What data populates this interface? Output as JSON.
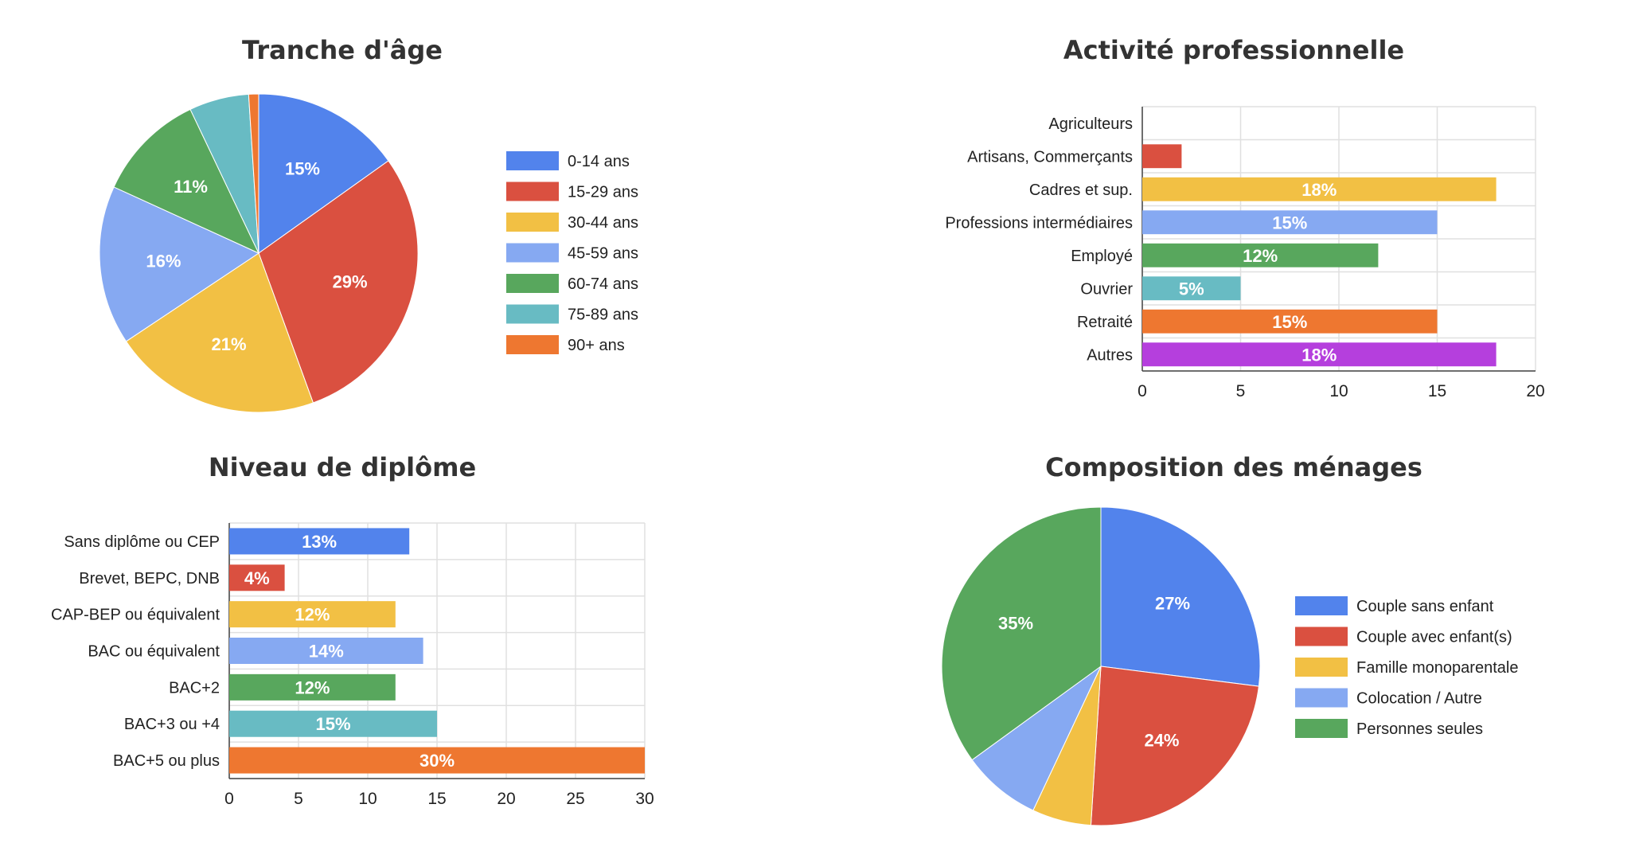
{
  "chart_data": [
    {
      "type": "pie",
      "title": "Tranche d'âge",
      "legend_position": "right",
      "slices": [
        {
          "label": "0-14 ans",
          "value": 15,
          "color": "#5283EC"
        },
        {
          "label": "15-29 ans",
          "value": 29,
          "color": "#DA5040"
        },
        {
          "label": "30-44 ans",
          "value": 21,
          "color": "#F2C044"
        },
        {
          "label": "45-59 ans",
          "value": 16,
          "color": "#86A9F2"
        },
        {
          "label": "60-74 ans",
          "value": 11,
          "color": "#58A75D"
        },
        {
          "label": "75-89 ans",
          "value": 6,
          "color": "#68BBC3"
        },
        {
          "label": "90+ ans",
          "value": 1,
          "color": "#EE7730"
        }
      ],
      "data_labels": [
        "15%",
        "29%",
        "21%",
        "16%",
        "11%",
        "",
        ""
      ]
    },
    {
      "type": "bar",
      "orientation": "horizontal",
      "title": "Activité professionnelle",
      "categories": [
        "Agriculteurs",
        "Artisans, Commerçants",
        "Cadres et sup.",
        "Professions intermédiaires",
        "Employé",
        "Ouvrier",
        "Retraité",
        "Autres"
      ],
      "values": [
        0,
        2,
        18,
        15,
        12,
        5,
        15,
        18
      ],
      "data_labels": [
        "",
        "",
        "18%",
        "15%",
        "12%",
        "5%",
        "15%",
        "18%"
      ],
      "colors": [
        "#5283EC",
        "#DA5040",
        "#F2C044",
        "#86A9F2",
        "#58A75D",
        "#68BBC3",
        "#EE7730",
        "#B53FDD"
      ],
      "xlim": [
        0,
        20
      ],
      "xticks": [
        "0",
        "5",
        "10",
        "15",
        "20"
      ],
      "grid": true
    },
    {
      "type": "bar",
      "orientation": "horizontal",
      "title": "Niveau de diplôme",
      "categories": [
        "Sans diplôme ou CEP",
        "Brevet, BEPC, DNB",
        "CAP-BEP ou équivalent",
        "BAC ou équivalent",
        "BAC+2",
        "BAC+3 ou +4",
        "BAC+5 ou plus"
      ],
      "values": [
        13,
        4,
        12,
        14,
        12,
        15,
        30
      ],
      "data_labels": [
        "13%",
        "4%",
        "12%",
        "14%",
        "12%",
        "15%",
        "30%"
      ],
      "colors": [
        "#5283EC",
        "#DA5040",
        "#F2C044",
        "#86A9F2",
        "#58A75D",
        "#68BBC3",
        "#EE7730"
      ],
      "xlim": [
        0,
        30
      ],
      "xticks": [
        "0",
        "5",
        "10",
        "15",
        "20",
        "25",
        "30"
      ],
      "grid": true
    },
    {
      "type": "pie",
      "title": "Composition des ménages",
      "legend_position": "right",
      "slices": [
        {
          "label": "Couple sans enfant",
          "value": 27,
          "color": "#5283EC"
        },
        {
          "label": "Couple avec enfant(s)",
          "value": 24,
          "color": "#DA5040"
        },
        {
          "label": "Famille monoparentale",
          "value": 6,
          "color": "#F2C044"
        },
        {
          "label": "Colocation / Autre",
          "value": 8,
          "color": "#86A9F2"
        },
        {
          "label": "Personnes seules",
          "value": 35,
          "color": "#58A75D"
        }
      ],
      "data_labels": [
        "27%",
        "24%",
        "",
        "",
        "35%"
      ]
    }
  ]
}
